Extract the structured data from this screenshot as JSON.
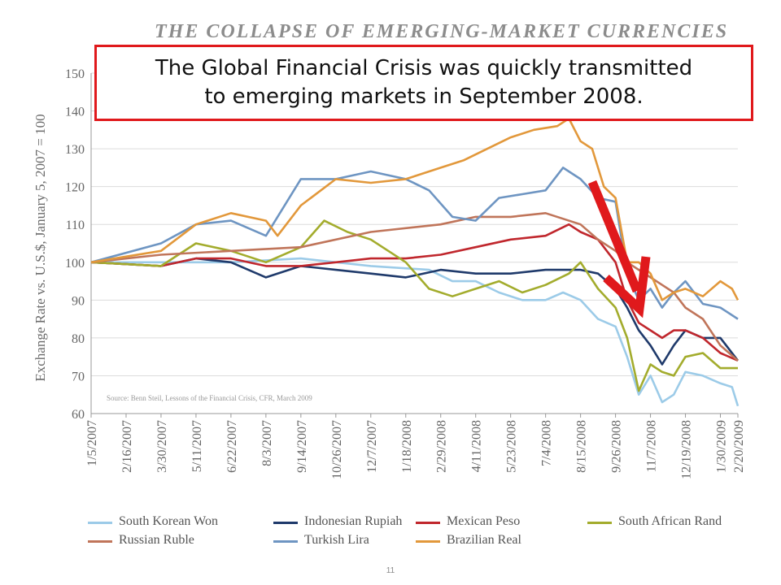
{
  "header": {
    "title": "THE COLLAPSE OF EMERGING-MARKET CURRENCIES"
  },
  "callout": {
    "text": "The Global Financial Crisis was quickly transmitted\nto emerging markets in September 2008."
  },
  "source_note": "Source: Benn Steil, Lessons of the Financial Crisis, CFR, March 2009",
  "page_number": "11",
  "colors": {
    "arrow": "#e0191c",
    "grid": "#dcdcdc",
    "axis_text": "#666666"
  },
  "chart_data": {
    "type": "line",
    "title": "THE COLLAPSE OF EMERGING-MARKET CURRENCIES",
    "ylabel": "Exchange Rate vs. U.S.$, January 5, 2007 = 100",
    "xlabel": "",
    "ylim": [
      60,
      150
    ],
    "yticks": [
      60,
      70,
      80,
      90,
      100,
      110,
      120,
      130,
      140,
      150
    ],
    "xlim": [
      "1/5/2007",
      "2/20/2009"
    ],
    "xtick_labels": [
      "1/5/2007",
      "2/16/2007",
      "3/30/2007",
      "5/11/2007",
      "6/22/2007",
      "8/3/2007",
      "9/14/2007",
      "10/26/2007",
      "12/7/2007",
      "1/18/2008",
      "2/29/2008",
      "4/11/2008",
      "5/23/2008",
      "7/4/2008",
      "8/15/2008",
      "9/26/2008",
      "11/7/2008",
      "12/19/2008",
      "1/30/2009",
      "2/20/2009"
    ],
    "grid": true,
    "legend_position": "bottom",
    "series": [
      {
        "name": "South Korean Won",
        "color": "#9ccbe8",
        "x": [
          "1/5/2007",
          "3/30/2007",
          "6/22/2007",
          "9/14/2007",
          "12/7/2007",
          "2/15/2008",
          "3/14/2008",
          "4/11/2008",
          "5/9/2008",
          "6/6/2008",
          "7/4/2008",
          "7/25/2008",
          "8/15/2008",
          "9/5/2008",
          "9/26/2008",
          "10/10/2008",
          "10/24/2008",
          "11/7/2008",
          "11/21/2008",
          "12/5/2008",
          "12/19/2008",
          "1/9/2009",
          "1/30/2009",
          "2/13/2009",
          "2/20/2009"
        ],
        "values": [
          100,
          100,
          100,
          101,
          99,
          98,
          95,
          95,
          92,
          90,
          90,
          92,
          90,
          85,
          83,
          75,
          65,
          70,
          63,
          65,
          71,
          70,
          68,
          67,
          62
        ]
      },
      {
        "name": "Indonesian Rupiah",
        "color": "#1f3a6b",
        "x": [
          "1/5/2007",
          "3/30/2007",
          "5/11/2007",
          "6/22/2007",
          "8/3/2007",
          "9/14/2007",
          "10/26/2007",
          "12/7/2007",
          "1/18/2008",
          "2/29/2008",
          "4/11/2008",
          "5/23/2008",
          "7/4/2008",
          "8/15/2008",
          "9/5/2008",
          "9/26/2008",
          "10/10/2008",
          "10/24/2008",
          "11/7/2008",
          "11/21/2008",
          "12/5/2008",
          "12/19/2008",
          "1/9/2009",
          "1/30/2009",
          "2/20/2009"
        ],
        "values": [
          100,
          99,
          101,
          100,
          96,
          99,
          98,
          97,
          96,
          98,
          97,
          97,
          98,
          98,
          97,
          93,
          88,
          82,
          78,
          73,
          78,
          82,
          80,
          80,
          74
        ]
      },
      {
        "name": "Mexican Peso",
        "color": "#c0272d",
        "x": [
          "1/5/2007",
          "3/30/2007",
          "5/11/2007",
          "6/22/2007",
          "8/3/2007",
          "9/14/2007",
          "10/26/2007",
          "12/7/2007",
          "1/18/2008",
          "2/29/2008",
          "4/11/2008",
          "5/23/2008",
          "7/4/2008",
          "8/1/2008",
          "8/15/2008",
          "9/5/2008",
          "9/26/2008",
          "10/10/2008",
          "10/24/2008",
          "11/7/2008",
          "11/21/2008",
          "12/5/2008",
          "12/19/2008",
          "1/9/2009",
          "1/30/2009",
          "2/20/2009"
        ],
        "values": [
          100,
          99,
          101,
          101,
          99,
          99,
          100,
          101,
          101,
          102,
          104,
          106,
          107,
          110,
          108,
          106,
          100,
          90,
          84,
          82,
          80,
          82,
          82,
          80,
          76,
          74
        ]
      },
      {
        "name": "South African Rand",
        "color": "#a3ac2d",
        "x": [
          "1/5/2007",
          "3/30/2007",
          "5/11/2007",
          "6/22/2007",
          "8/3/2007",
          "9/14/2007",
          "10/12/2007",
          "11/9/2007",
          "12/7/2007",
          "1/18/2008",
          "2/15/2008",
          "3/14/2008",
          "4/11/2008",
          "5/9/2008",
          "6/6/2008",
          "7/4/2008",
          "8/1/2008",
          "8/15/2008",
          "9/5/2008",
          "9/26/2008",
          "10/10/2008",
          "10/24/2008",
          "11/7/2008",
          "11/21/2008",
          "12/5/2008",
          "12/19/2008",
          "1/9/2009",
          "1/30/2009",
          "2/20/2009"
        ],
        "values": [
          100,
          99,
          105,
          103,
          100,
          104,
          111,
          108,
          106,
          100,
          93,
          91,
          93,
          95,
          92,
          94,
          97,
          100,
          93,
          88,
          80,
          66,
          73,
          71,
          70,
          75,
          76,
          72,
          72
        ]
      },
      {
        "name": "Russian Ruble",
        "color": "#c0755a",
        "x": [
          "1/5/2007",
          "3/30/2007",
          "6/22/2007",
          "9/14/2007",
          "12/7/2007",
          "2/29/2008",
          "4/11/2008",
          "5/23/2008",
          "7/4/2008",
          "8/15/2008",
          "9/5/2008",
          "9/26/2008",
          "10/10/2008",
          "10/24/2008",
          "11/7/2008",
          "11/21/2008",
          "12/5/2008",
          "12/19/2008",
          "1/9/2009",
          "1/30/2009",
          "2/20/2009"
        ],
        "values": [
          100,
          102,
          103,
          104,
          108,
          110,
          112,
          112,
          113,
          110,
          106,
          103,
          100,
          98,
          96,
          94,
          92,
          88,
          85,
          78,
          74
        ]
      },
      {
        "name": "Turkish Lira",
        "color": "#6e95c2",
        "x": [
          "1/5/2007",
          "3/30/2007",
          "5/11/2007",
          "6/22/2007",
          "8/3/2007",
          "9/14/2007",
          "10/26/2007",
          "12/7/2007",
          "1/18/2008",
          "2/15/2008",
          "3/14/2008",
          "4/11/2008",
          "5/9/2008",
          "6/6/2008",
          "7/4/2008",
          "7/25/2008",
          "8/15/2008",
          "9/5/2008",
          "9/26/2008",
          "10/10/2008",
          "10/24/2008",
          "11/7/2008",
          "11/21/2008",
          "12/5/2008",
          "12/19/2008",
          "1/9/2009",
          "1/30/2009",
          "2/20/2009"
        ],
        "values": [
          100,
          105,
          110,
          111,
          107,
          122,
          122,
          124,
          122,
          119,
          112,
          111,
          117,
          118,
          119,
          125,
          122,
          117,
          116,
          97,
          90,
          93,
          88,
          92,
          95,
          89,
          88,
          85
        ]
      },
      {
        "name": "Brazilian Real",
        "color": "#e2983b",
        "x": [
          "1/5/2007",
          "3/30/2007",
          "5/11/2007",
          "6/22/2007",
          "8/3/2007",
          "8/17/2007",
          "9/14/2007",
          "10/26/2007",
          "12/7/2007",
          "1/18/2008",
          "2/29/2008",
          "3/28/2008",
          "4/25/2008",
          "5/23/2008",
          "6/20/2008",
          "7/18/2008",
          "8/1/2008",
          "8/15/2008",
          "8/29/2008",
          "9/12/2008",
          "9/26/2008",
          "10/10/2008",
          "10/24/2008",
          "11/7/2008",
          "11/21/2008",
          "12/5/2008",
          "12/19/2008",
          "1/9/2009",
          "1/30/2009",
          "2/13/2009",
          "2/20/2009"
        ],
        "values": [
          100,
          103,
          110,
          113,
          111,
          107,
          115,
          122,
          121,
          122,
          125,
          127,
          130,
          133,
          135,
          136,
          138,
          132,
          130,
          120,
          117,
          100,
          100,
          97,
          90,
          92,
          93,
          91,
          95,
          93,
          90
        ]
      }
    ]
  }
}
